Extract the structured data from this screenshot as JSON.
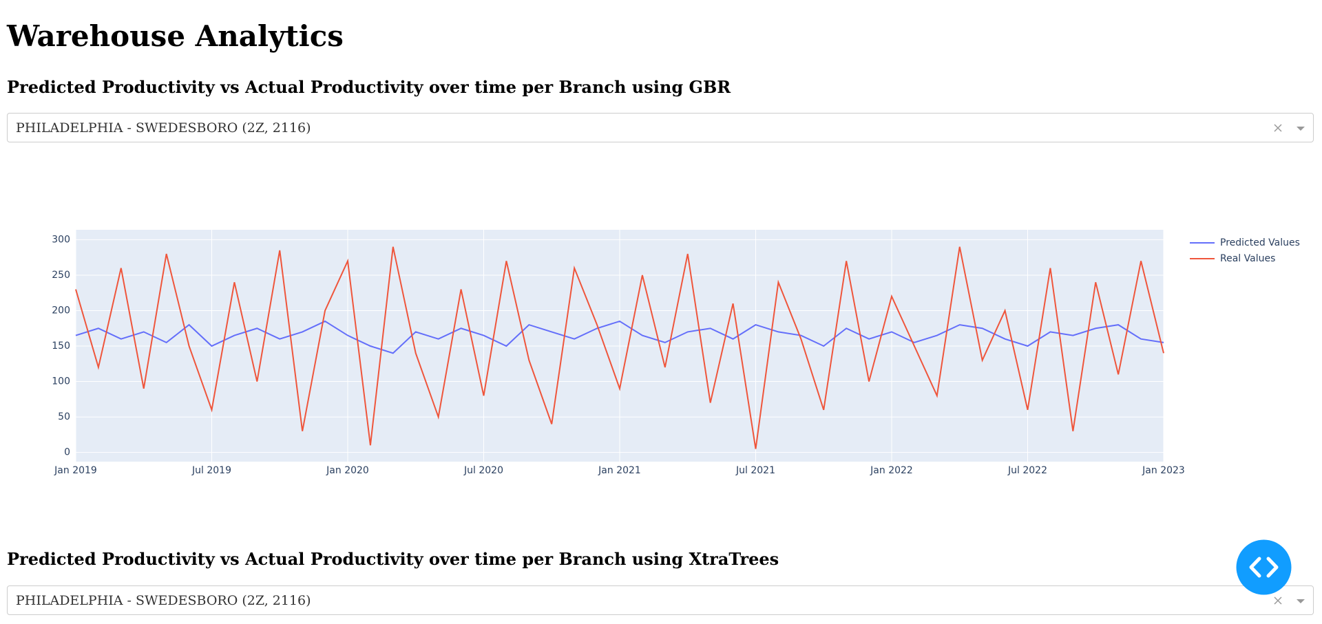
{
  "page_title": "Warehouse Analytics",
  "sections": [
    {
      "heading": "Predicted Productivity vs Actual Productivity over time per Branch using GBR",
      "dropdown_value": "PHILADELPHIA - SWEDESBORO (2Z, 2116)"
    },
    {
      "heading": "Predicted Productivity vs Actual Productivity over time per Branch using XtraTrees",
      "dropdown_value": "PHILADELPHIA - SWEDESBORO (2Z, 2116)"
    }
  ],
  "chart_data": {
    "type": "line",
    "x": [
      "2019-01",
      "2019-02",
      "2019-03",
      "2019-04",
      "2019-05",
      "2019-06",
      "2019-07",
      "2019-08",
      "2019-09",
      "2019-10",
      "2019-11",
      "2019-12",
      "2020-01",
      "2020-02",
      "2020-03",
      "2020-04",
      "2020-05",
      "2020-06",
      "2020-07",
      "2020-08",
      "2020-09",
      "2020-10",
      "2020-11",
      "2020-12",
      "2021-01",
      "2021-02",
      "2021-03",
      "2021-04",
      "2021-05",
      "2021-06",
      "2021-07",
      "2021-08",
      "2021-09",
      "2021-10",
      "2021-11",
      "2021-12",
      "2022-01",
      "2022-02",
      "2022-03",
      "2022-04",
      "2022-05",
      "2022-06",
      "2022-07",
      "2022-08",
      "2022-09",
      "2022-10",
      "2022-11",
      "2022-12",
      "2023-01"
    ],
    "series": [
      {
        "name": "Predicted Values",
        "color": "#636efa",
        "values": [
          165,
          175,
          160,
          170,
          155,
          180,
          150,
          165,
          175,
          160,
          170,
          185,
          165,
          150,
          140,
          170,
          160,
          175,
          165,
          150,
          180,
          170,
          160,
          175,
          185,
          165,
          155,
          170,
          175,
          160,
          180,
          170,
          165,
          150,
          175,
          160,
          170,
          155,
          165,
          180,
          175,
          160,
          150,
          170,
          165,
          175,
          180,
          160,
          155
        ]
      },
      {
        "name": "Real Values",
        "color": "#ef553b",
        "values": [
          230,
          120,
          260,
          90,
          280,
          150,
          60,
          240,
          100,
          285,
          30,
          200,
          270,
          10,
          290,
          140,
          50,
          230,
          80,
          270,
          130,
          40,
          260,
          180,
          90,
          250,
          120,
          280,
          70,
          210,
          5,
          240,
          160,
          60,
          270,
          100,
          220,
          150,
          80,
          290,
          130,
          200,
          60,
          260,
          30,
          240,
          110,
          270,
          140
        ]
      }
    ],
    "xlim": [
      "2019-01",
      "2023-01"
    ],
    "xticks": [
      {
        "value": "2019-01",
        "label": "Jan 2019"
      },
      {
        "value": "2019-07",
        "label": "Jul 2019"
      },
      {
        "value": "2020-01",
        "label": "Jan 2020"
      },
      {
        "value": "2020-07",
        "label": "Jul 2020"
      },
      {
        "value": "2021-01",
        "label": "Jan 2021"
      },
      {
        "value": "2021-07",
        "label": "Jul 2021"
      },
      {
        "value": "2022-01",
        "label": "Jan 2022"
      },
      {
        "value": "2022-07",
        "label": "Jul 2022"
      },
      {
        "value": "2023-01",
        "label": "Jan 2023"
      }
    ],
    "ylim": [
      -13,
      314
    ],
    "yticks": [
      0,
      50,
      100,
      150,
      200,
      250,
      300
    ],
    "grid": true,
    "legend": "right"
  }
}
